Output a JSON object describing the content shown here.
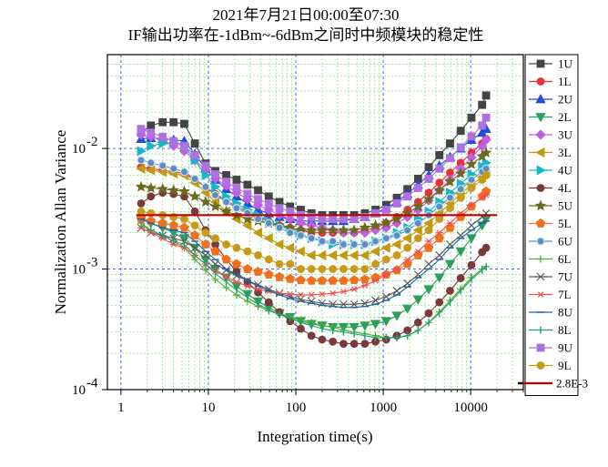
{
  "chart_data": {
    "type": "line",
    "title": "2021年7月21日00:00至07:30",
    "subtitle": "IF输出功率在-1dBm~-6dBm之间时中频模块的稳定性",
    "xlabel": "Integration time(s)",
    "ylabel": "Normalization Allan Variance",
    "x_scale": "log",
    "y_scale": "log",
    "xlim": [
      0.7,
      40000
    ],
    "ylim": [
      0.0001,
      0.06
    ],
    "xticks": [
      {
        "value": 1,
        "label": "1"
      },
      {
        "value": 10,
        "label": "10"
      },
      {
        "value": 100,
        "label": "100"
      },
      {
        "value": 1000,
        "label": "1000"
      },
      {
        "value": 10000,
        "label": "10000"
      }
    ],
    "yticks": [
      {
        "value": 0.01,
        "base": "10",
        "exp": "-2"
      },
      {
        "value": 0.001,
        "base": "10",
        "exp": "-3"
      },
      {
        "value": 0.0001,
        "base": "10",
        "exp": "-4"
      }
    ],
    "grid": true,
    "legend_position": "right",
    "x": [
      1.7,
      2.2,
      3.0,
      4.0,
      5.3,
      7.0,
      9.3,
      12,
      16,
      21,
      28,
      37,
      49,
      65,
      86,
      114,
      151,
      200,
      265,
      351,
      465,
      616,
      815,
      1080,
      1430,
      1890,
      2500,
      3310,
      4380,
      5800,
      7680,
      10200,
      13500,
      15000
    ],
    "series": [
      {
        "name": "1U",
        "color": "#444444",
        "marker": "square",
        "values": [
          0.0135,
          0.0155,
          0.0165,
          0.0165,
          0.016,
          0.011,
          0.0075,
          0.0065,
          0.006,
          0.0055,
          0.005,
          0.0045,
          0.004,
          0.0036,
          0.0033,
          0.0031,
          0.0029,
          0.0028,
          0.0028,
          0.0028,
          0.0028,
          0.0029,
          0.0031,
          0.0034,
          0.0039,
          0.0046,
          0.0056,
          0.007,
          0.0088,
          0.011,
          0.014,
          0.018,
          0.023,
          0.0275
        ]
      },
      {
        "name": "1L",
        "color": "#e8303a",
        "marker": "circle",
        "values": [
          0.007,
          0.0068,
          0.0066,
          0.0064,
          0.0062,
          0.0055,
          0.0048,
          0.0042,
          0.0037,
          0.0033,
          0.003,
          0.0027,
          0.0025,
          0.0023,
          0.0022,
          0.0021,
          0.002,
          0.002,
          0.002,
          0.002,
          0.002,
          0.0021,
          0.0022,
          0.0024,
          0.0027,
          0.0031,
          0.0036,
          0.0043,
          0.0052,
          0.0063,
          0.0076,
          0.0092,
          0.011,
          0.012
        ]
      },
      {
        "name": "2U",
        "color": "#1f4ed8",
        "marker": "triangle-up",
        "values": [
          0.012,
          0.0122,
          0.012,
          0.0118,
          0.0115,
          0.009,
          0.0068,
          0.0055,
          0.0046,
          0.004,
          0.0035,
          0.0031,
          0.0029,
          0.0027,
          0.0026,
          0.0025,
          0.0025,
          0.0025,
          0.0025,
          0.0025,
          0.0026,
          0.0027,
          0.0029,
          0.0032,
          0.0036,
          0.0042,
          0.005,
          0.006,
          0.0072,
          0.0085,
          0.01,
          0.0118,
          0.0135,
          0.0145
        ]
      },
      {
        "name": "2L",
        "color": "#2e9e5b",
        "marker": "triangle-down",
        "values": [
          0.0026,
          0.0024,
          0.0022,
          0.002,
          0.0018,
          0.0015,
          0.0012,
          0.001,
          0.00085,
          0.00072,
          0.00062,
          0.00054,
          0.00048,
          0.00043,
          0.0004,
          0.00037,
          0.00035,
          0.00034,
          0.00033,
          0.00033,
          0.00033,
          0.00034,
          0.00035,
          0.00037,
          0.00041,
          0.00047,
          0.00056,
          0.00068,
          0.00085,
          0.0011,
          0.0014,
          0.0018,
          0.0023,
          0.0026
        ]
      },
      {
        "name": "3U",
        "color": "#c060e0",
        "marker": "diamond",
        "values": [
          0.013,
          0.0125,
          0.0115,
          0.0105,
          0.0095,
          0.008,
          0.0066,
          0.0056,
          0.0049,
          0.0043,
          0.0038,
          0.0034,
          0.0031,
          0.0028,
          0.0026,
          0.0024,
          0.0023,
          0.0022,
          0.0021,
          0.002,
          0.002,
          0.002,
          0.0021,
          0.0022,
          0.0024,
          0.0027,
          0.0031,
          0.0037,
          0.0045,
          0.0055,
          0.0068,
          0.0084,
          0.0104,
          0.0118
        ]
      },
      {
        "name": "3L",
        "color": "#c09a10",
        "marker": "triangle-left",
        "values": [
          0.0068,
          0.0066,
          0.0064,
          0.0062,
          0.006,
          0.0052,
          0.0043,
          0.0036,
          0.003,
          0.0026,
          0.0023,
          0.002,
          0.0018,
          0.0016,
          0.0015,
          0.0014,
          0.0013,
          0.0013,
          0.0013,
          0.0013,
          0.0013,
          0.0013,
          0.0014,
          0.0015,
          0.0016,
          0.0018,
          0.0021,
          0.0024,
          0.0029,
          0.0035,
          0.0042,
          0.005,
          0.0058,
          0.0063
        ]
      },
      {
        "name": "4U",
        "color": "#16b8c8",
        "marker": "triangle-right",
        "values": [
          0.0095,
          0.0105,
          0.011,
          0.0112,
          0.0105,
          0.008,
          0.006,
          0.0048,
          0.004,
          0.0035,
          0.0031,
          0.0028,
          0.0025,
          0.0023,
          0.0021,
          0.0019,
          0.0018,
          0.0017,
          0.0016,
          0.0016,
          0.0016,
          0.0016,
          0.0017,
          0.0018,
          0.002,
          0.0022,
          0.0026,
          0.003,
          0.0036,
          0.0043,
          0.0051,
          0.0061,
          0.0071,
          0.0076
        ]
      },
      {
        "name": "4L",
        "color": "#7a3a3a",
        "marker": "circle",
        "values": [
          0.0035,
          0.004,
          0.0043,
          0.0042,
          0.004,
          0.003,
          0.0021,
          0.0016,
          0.0012,
          0.00095,
          0.00078,
          0.00064,
          0.00053,
          0.00044,
          0.00037,
          0.00032,
          0.00028,
          0.00026,
          0.00025,
          0.00024,
          0.00024,
          0.00024,
          0.00025,
          0.00026,
          0.00028,
          0.00031,
          0.00036,
          0.00043,
          0.00053,
          0.00066,
          0.00084,
          0.00108,
          0.00138,
          0.0015
        ]
      },
      {
        "name": "5U",
        "color": "#6b6a1e",
        "marker": "star",
        "values": [
          0.0048,
          0.0047,
          0.0046,
          0.0045,
          0.0044,
          0.004,
          0.0036,
          0.0033,
          0.003,
          0.0028,
          0.0026,
          0.0025,
          0.0024,
          0.0023,
          0.0022,
          0.0021,
          0.0021,
          0.0021,
          0.0021,
          0.0021,
          0.0021,
          0.0022,
          0.0023,
          0.0024,
          0.0026,
          0.0029,
          0.0033,
          0.0038,
          0.0045,
          0.0053,
          0.0062,
          0.0074,
          0.0086,
          0.0092
        ]
      },
      {
        "name": "5L",
        "color": "#f07020",
        "marker": "pentagon",
        "values": [
          0.0026,
          0.0025,
          0.0024,
          0.0023,
          0.0022,
          0.0019,
          0.0016,
          0.0014,
          0.0012,
          0.0011,
          0.001,
          0.00095,
          0.0009,
          0.00086,
          0.00083,
          0.00081,
          0.0008,
          0.0008,
          0.0008,
          0.0008,
          0.00081,
          0.00082,
          0.00085,
          0.0009,
          0.00098,
          0.0011,
          0.0013,
          0.0015,
          0.0018,
          0.0022,
          0.0027,
          0.0033,
          0.004,
          0.0044
        ]
      },
      {
        "name": "6U",
        "color": "#5a8ec0",
        "marker": "circle-dot",
        "values": [
          0.008,
          0.0076,
          0.0072,
          0.0068,
          0.0064,
          0.0056,
          0.0048,
          0.0041,
          0.0036,
          0.0032,
          0.0029,
          0.0026,
          0.0024,
          0.0022,
          0.002,
          0.0019,
          0.0018,
          0.0017,
          0.0017,
          0.0016,
          0.0016,
          0.0016,
          0.0017,
          0.0018,
          0.0019,
          0.0021,
          0.0024,
          0.0028,
          0.0033,
          0.0039,
          0.0046,
          0.0055,
          0.0064,
          0.0068
        ]
      },
      {
        "name": "6L",
        "color": "#55b030",
        "marker": "plus",
        "values": [
          0.0024,
          0.0021,
          0.0019,
          0.0017,
          0.0015,
          0.0012,
          0.00098,
          0.00082,
          0.0007,
          0.00061,
          0.00054,
          0.00049,
          0.00045,
          0.00042,
          0.0004,
          0.00038,
          0.00036,
          0.00034,
          0.00033,
          0.00031,
          0.0003,
          0.00029,
          0.00028,
          0.00027,
          0.00027,
          0.00028,
          0.00031,
          0.00036,
          0.00044,
          0.00055,
          0.00068,
          0.00085,
          0.001,
          0.00105
        ]
      },
      {
        "name": "7U",
        "color": "#555555",
        "marker": "x",
        "values": [
          0.0022,
          0.002,
          0.0019,
          0.0018,
          0.0017,
          0.0015,
          0.0013,
          0.0011,
          0.00098,
          0.00088,
          0.0008,
          0.00074,
          0.00068,
          0.00063,
          0.00059,
          0.00056,
          0.00054,
          0.00052,
          0.00051,
          0.00051,
          0.00051,
          0.00052,
          0.00055,
          0.00059,
          0.00066,
          0.00076,
          0.0009,
          0.0011,
          0.0013,
          0.0016,
          0.0019,
          0.0023,
          0.0027,
          0.0029
        ]
      },
      {
        "name": "7L",
        "color": "#f05050",
        "marker": "asterisk",
        "values": [
          0.0022,
          0.002,
          0.0018,
          0.0016,
          0.0015,
          0.0013,
          0.0011,
          0.00096,
          0.00086,
          0.00078,
          0.00072,
          0.00068,
          0.00065,
          0.00063,
          0.00062,
          0.00061,
          0.00061,
          0.00062,
          0.00063,
          0.00065,
          0.00068,
          0.00073,
          0.0008,
          0.0009,
          0.001,
          0.0012,
          0.0014,
          0.0017,
          0.002,
          0.0024,
          0.0029,
          0.0034,
          0.0039,
          0.0041
        ]
      },
      {
        "name": "8U",
        "color": "#2060a0",
        "marker": "dash",
        "values": [
          0.0026,
          0.0024,
          0.0022,
          0.0021,
          0.002,
          0.0017,
          0.0014,
          0.0012,
          0.001,
          0.0009,
          0.0008,
          0.00072,
          0.00066,
          0.00061,
          0.00057,
          0.00054,
          0.00052,
          0.0005,
          0.00049,
          0.00048,
          0.00048,
          0.00049,
          0.00051,
          0.00055,
          0.00061,
          0.00071,
          0.00085,
          0.001,
          0.0012,
          0.0015,
          0.0018,
          0.0021,
          0.0024,
          0.0025
        ]
      },
      {
        "name": "8L",
        "color": "#20a070",
        "marker": "pipe",
        "values": [
          0.0023,
          0.0021,
          0.0019,
          0.0017,
          0.0016,
          0.0013,
          0.0011,
          0.00092,
          0.00078,
          0.00067,
          0.00058,
          0.00051,
          0.00046,
          0.00042,
          0.00039,
          0.00036,
          0.00034,
          0.00032,
          0.00031,
          0.0003,
          0.00029,
          0.00028,
          0.00027,
          0.00027,
          0.00027,
          0.00028,
          0.00031,
          0.00036,
          0.00043,
          0.00053,
          0.00066,
          0.00082,
          0.00098,
          0.00104
        ]
      },
      {
        "name": "9U",
        "color": "#b070e0",
        "marker": "square",
        "values": [
          0.0145,
          0.0135,
          0.0125,
          0.0115,
          0.0105,
          0.0088,
          0.0072,
          0.0061,
          0.0053,
          0.0047,
          0.0042,
          0.0038,
          0.0035,
          0.0032,
          0.003,
          0.0028,
          0.0027,
          0.0026,
          0.0026,
          0.0026,
          0.0026,
          0.0027,
          0.0029,
          0.0031,
          0.0035,
          0.004,
          0.0047,
          0.0056,
          0.0068,
          0.0083,
          0.0102,
          0.0126,
          0.0155,
          0.018
        ]
      },
      {
        "name": "9L",
        "color": "#c89a1a",
        "marker": "circle",
        "values": [
          0.003,
          0.0029,
          0.0028,
          0.0027,
          0.0026,
          0.0023,
          0.002,
          0.0018,
          0.0016,
          0.0015,
          0.0014,
          0.0013,
          0.0012,
          0.0011,
          0.0011,
          0.001,
          0.001,
          0.001,
          0.001,
          0.001,
          0.001,
          0.001,
          0.0011,
          0.0012,
          0.0013,
          0.0015,
          0.0018,
          0.0021,
          0.0026,
          0.0032,
          0.0039,
          0.0047,
          0.0055,
          0.006
        ]
      }
    ],
    "reference_line": {
      "name": "2.8E-3",
      "value": 0.0028,
      "x_range": [
        1.5,
        20000
      ],
      "color": "#c00000"
    }
  }
}
